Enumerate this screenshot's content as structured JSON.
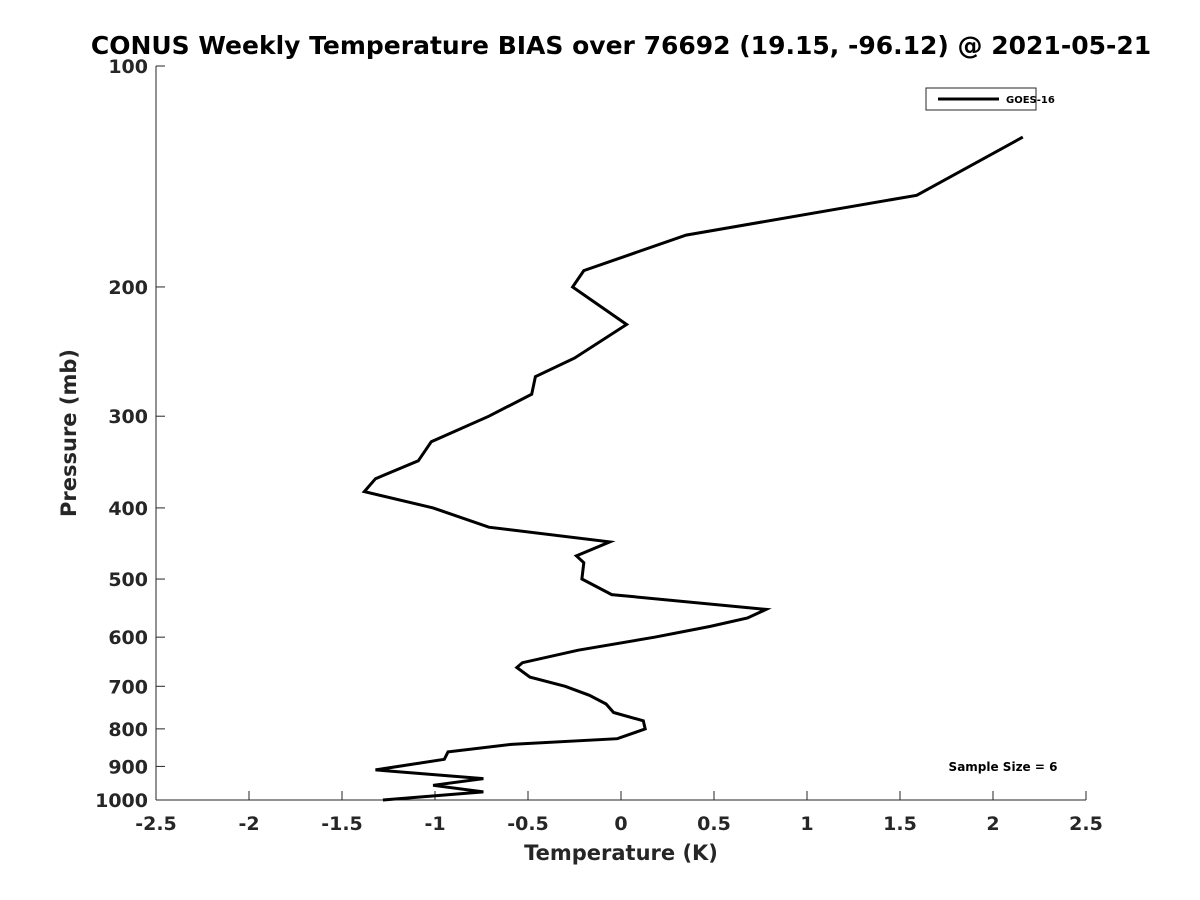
{
  "chart_data": {
    "type": "line",
    "title": "CONUS Weekly Temperature BIAS over 76692 (19.15, -96.12) @ 2021-05-21",
    "xlabel": "Temperature (K)",
    "ylabel": "Pressure (mb)",
    "xlim": [
      -2.5,
      2.5
    ],
    "ylim": [
      1000,
      100
    ],
    "yscale": "log",
    "y_reversed": true,
    "xticks": [
      -2.5,
      -2,
      -1.5,
      -1,
      -0.5,
      0,
      0.5,
      1,
      1.5,
      2,
      2.5
    ],
    "xtick_labels": [
      "-2.5",
      "-2",
      "-1.5",
      "-1",
      "-0.5",
      "0",
      "0.5",
      "1",
      "1.5",
      "2",
      "2.5"
    ],
    "yticks": [
      100,
      200,
      300,
      400,
      500,
      600,
      700,
      800,
      900,
      1000
    ],
    "ytick_labels": [
      "100",
      "200",
      "300",
      "400",
      "500",
      "600",
      "700",
      "800",
      "900",
      "1000"
    ],
    "grid": false,
    "legend_position": "top-right",
    "series": [
      {
        "name": "GOES-16",
        "color": "#000000",
        "points": [
          {
            "x": 2.16,
            "p": 125
          },
          {
            "x": 1.59,
            "p": 150
          },
          {
            "x": 0.35,
            "p": 170
          },
          {
            "x": -0.2,
            "p": 190
          },
          {
            "x": -0.26,
            "p": 200
          },
          {
            "x": 0.03,
            "p": 225
          },
          {
            "x": -0.25,
            "p": 250
          },
          {
            "x": -0.46,
            "p": 265
          },
          {
            "x": -0.48,
            "p": 280
          },
          {
            "x": -0.71,
            "p": 300
          },
          {
            "x": -1.02,
            "p": 325
          },
          {
            "x": -1.09,
            "p": 345
          },
          {
            "x": -1.32,
            "p": 365
          },
          {
            "x": -1.38,
            "p": 380
          },
          {
            "x": -1.01,
            "p": 400
          },
          {
            "x": -0.71,
            "p": 425
          },
          {
            "x": -0.06,
            "p": 445
          },
          {
            "x": -0.24,
            "p": 465
          },
          {
            "x": -0.2,
            "p": 475
          },
          {
            "x": -0.21,
            "p": 500
          },
          {
            "x": -0.05,
            "p": 525
          },
          {
            "x": 0.78,
            "p": 550
          },
          {
            "x": 0.68,
            "p": 565
          },
          {
            "x": 0.48,
            "p": 580
          },
          {
            "x": 0.18,
            "p": 600
          },
          {
            "x": -0.23,
            "p": 625
          },
          {
            "x": -0.53,
            "p": 650
          },
          {
            "x": -0.56,
            "p": 660
          },
          {
            "x": -0.49,
            "p": 680
          },
          {
            "x": -0.3,
            "p": 700
          },
          {
            "x": -0.17,
            "p": 720
          },
          {
            "x": -0.08,
            "p": 740
          },
          {
            "x": -0.04,
            "p": 760
          },
          {
            "x": 0.12,
            "p": 780
          },
          {
            "x": 0.13,
            "p": 800
          },
          {
            "x": -0.02,
            "p": 825
          },
          {
            "x": -0.59,
            "p": 840
          },
          {
            "x": -0.93,
            "p": 860
          },
          {
            "x": -0.95,
            "p": 880
          },
          {
            "x": -1.32,
            "p": 910
          },
          {
            "x": -0.74,
            "p": 935
          },
          {
            "x": -1.01,
            "p": 955
          },
          {
            "x": -0.74,
            "p": 975
          },
          {
            "x": -1.28,
            "p": 1000
          }
        ]
      }
    ],
    "annotations": [
      "Sample Size = 6"
    ]
  }
}
